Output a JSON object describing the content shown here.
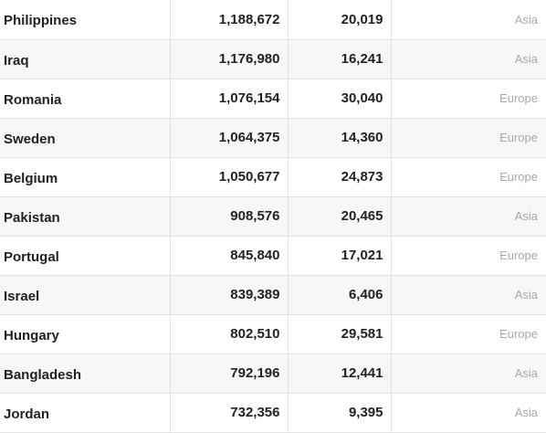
{
  "table": {
    "rows": [
      {
        "country": "Philippines",
        "cases": "1,188,672",
        "deaths": "20,019",
        "region": "Asia"
      },
      {
        "country": "Iraq",
        "cases": "1,176,980",
        "deaths": "16,241",
        "region": "Asia"
      },
      {
        "country": "Romania",
        "cases": "1,076,154",
        "deaths": "30,040",
        "region": "Europe"
      },
      {
        "country": "Sweden",
        "cases": "1,064,375",
        "deaths": "14,360",
        "region": "Europe"
      },
      {
        "country": "Belgium",
        "cases": "1,050,677",
        "deaths": "24,873",
        "region": "Europe"
      },
      {
        "country": "Pakistan",
        "cases": "908,576",
        "deaths": "20,465",
        "region": "Asia"
      },
      {
        "country": "Portugal",
        "cases": "845,840",
        "deaths": "17,021",
        "region": "Europe"
      },
      {
        "country": "Israel",
        "cases": "839,389",
        "deaths": "6,406",
        "region": "Asia"
      },
      {
        "country": "Hungary",
        "cases": "802,510",
        "deaths": "29,581",
        "region": "Europe"
      },
      {
        "country": "Bangladesh",
        "cases": "792,196",
        "deaths": "12,441",
        "region": "Asia"
      },
      {
        "country": "Jordan",
        "cases": "732,356",
        "deaths": "9,395",
        "region": "Asia"
      }
    ]
  },
  "colors": {
    "row_alt": "#f7f7f7",
    "border": "#e2e2e2",
    "region_text": "#a8a8a8"
  }
}
